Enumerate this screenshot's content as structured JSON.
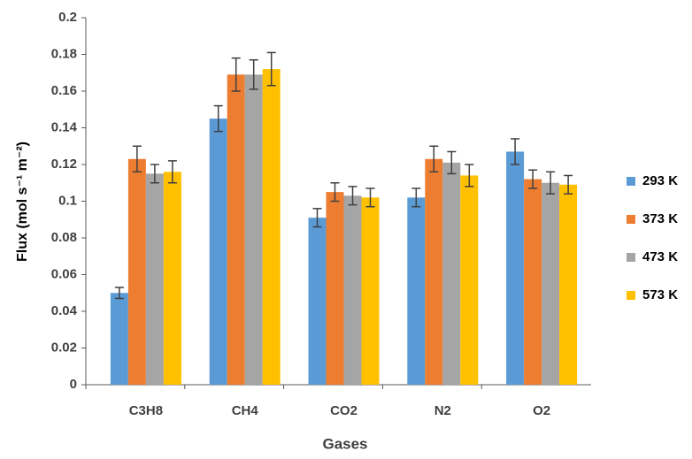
{
  "chart_data": {
    "type": "bar",
    "x_label": "Gases",
    "y_label": "Flux (mol s⁻¹ m⁻²)",
    "categories": [
      "C3H8",
      "CH4",
      "CO2",
      "N2",
      "O2"
    ],
    "series": [
      {
        "name": "293 K",
        "color": "#5b9bd5",
        "values": [
          0.05,
          0.145,
          0.091,
          0.102,
          0.127
        ],
        "errors": [
          0.003,
          0.007,
          0.005,
          0.005,
          0.007
        ]
      },
      {
        "name": "373 K",
        "color": "#ed7d31",
        "values": [
          0.123,
          0.169,
          0.105,
          0.123,
          0.112
        ],
        "errors": [
          0.007,
          0.009,
          0.005,
          0.007,
          0.005
        ]
      },
      {
        "name": "473 K",
        "color": "#a5a5a5",
        "values": [
          0.115,
          0.169,
          0.103,
          0.121,
          0.11
        ],
        "errors": [
          0.005,
          0.008,
          0.005,
          0.006,
          0.006
        ]
      },
      {
        "name": "573 K",
        "color": "#ffc000",
        "values": [
          0.116,
          0.172,
          0.102,
          0.114,
          0.109
        ],
        "errors": [
          0.006,
          0.009,
          0.005,
          0.006,
          0.005
        ]
      }
    ],
    "ylim": [
      0,
      0.2
    ],
    "yticks": [
      0,
      0.02,
      0.04,
      0.06,
      0.08,
      0.1,
      0.12,
      0.14,
      0.16,
      0.18,
      0.2
    ],
    "grid": false,
    "legend": "right"
  }
}
